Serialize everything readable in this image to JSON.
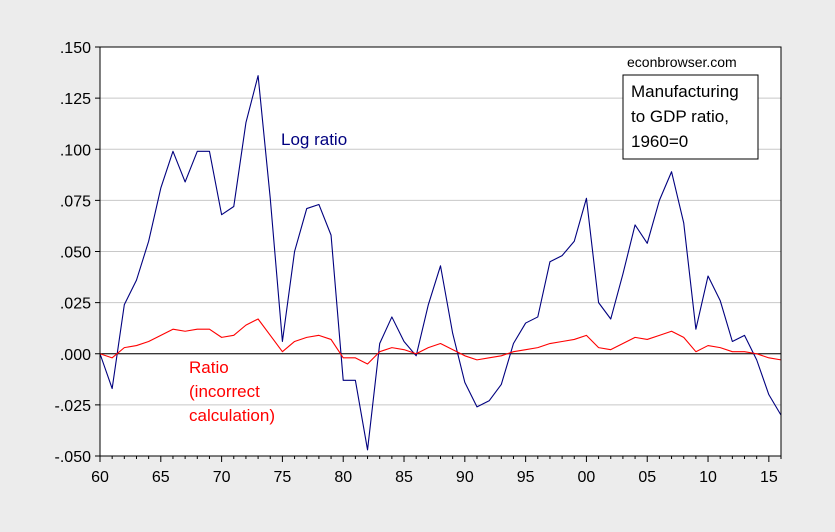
{
  "watermark": "econbrowser.com",
  "legend_box": [
    "Manufacturing",
    "to GDP ratio,",
    "1960=0"
  ],
  "annotations": {
    "log_ratio": "Log ratio",
    "ratio": [
      "Ratio",
      "(incorrect",
      "calculation)"
    ]
  },
  "colors": {
    "log_ratio": "#00007f",
    "ratio": "#ff0000",
    "grid": "#c8c8c8",
    "background": "#ececec",
    "plot_bg": "#ffffff"
  },
  "chart_data": {
    "type": "line",
    "x": [
      1960,
      1961,
      1962,
      1963,
      1964,
      1965,
      1966,
      1967,
      1968,
      1969,
      1970,
      1971,
      1972,
      1973,
      1974,
      1975,
      1976,
      1977,
      1978,
      1979,
      1980,
      1981,
      1982,
      1983,
      1984,
      1985,
      1986,
      1987,
      1988,
      1989,
      1990,
      1991,
      1992,
      1993,
      1994,
      1995,
      1996,
      1997,
      1998,
      1999,
      2000,
      2001,
      2002,
      2003,
      2004,
      2005,
      2006,
      2007,
      2008,
      2009,
      2010,
      2011,
      2012,
      2013,
      2014,
      2015,
      2016
    ],
    "xlim": [
      1960,
      2016
    ],
    "ylim": [
      -0.05,
      0.15
    ],
    "x_ticks": [
      "60",
      "65",
      "70",
      "75",
      "80",
      "85",
      "90",
      "95",
      "00",
      "05",
      "10",
      "15"
    ],
    "y_ticks": [
      ".150",
      ".125",
      ".100",
      ".075",
      ".050",
      ".025",
      ".000",
      "-.025",
      "-.050"
    ],
    "grid": true,
    "series": [
      {
        "name": "Log ratio",
        "values": [
          0.0,
          -0.017,
          0.024,
          0.036,
          0.055,
          0.081,
          0.099,
          0.084,
          0.099,
          0.099,
          0.068,
          0.072,
          0.113,
          0.136,
          0.076,
          0.006,
          0.05,
          0.071,
          0.073,
          0.058,
          -0.013,
          -0.013,
          -0.047,
          0.005,
          0.018,
          0.006,
          -0.001,
          0.024,
          0.043,
          0.01,
          -0.014,
          -0.026,
          -0.023,
          -0.015,
          0.005,
          0.015,
          0.018,
          0.045,
          0.048,
          0.055,
          0.076,
          0.025,
          0.017,
          0.039,
          0.063,
          0.054,
          0.075,
          0.089,
          0.064,
          0.012,
          0.038,
          0.026,
          0.006,
          0.009,
          -0.003,
          -0.02,
          -0.03
        ]
      },
      {
        "name": "Ratio",
        "values": [
          0.0,
          -0.002,
          0.003,
          0.004,
          0.006,
          0.009,
          0.012,
          0.011,
          0.012,
          0.012,
          0.008,
          0.009,
          0.014,
          0.017,
          0.009,
          0.001,
          0.006,
          0.008,
          0.009,
          0.007,
          -0.002,
          -0.002,
          -0.005,
          0.001,
          0.003,
          0.002,
          0.0,
          0.003,
          0.005,
          0.002,
          -0.001,
          -0.003,
          -0.002,
          -0.001,
          0.001,
          0.002,
          0.003,
          0.005,
          0.006,
          0.007,
          0.009,
          0.003,
          0.002,
          0.005,
          0.008,
          0.007,
          0.009,
          0.011,
          0.008,
          0.001,
          0.004,
          0.003,
          0.001,
          0.001,
          0.0,
          -0.002,
          -0.003
        ]
      }
    ]
  }
}
